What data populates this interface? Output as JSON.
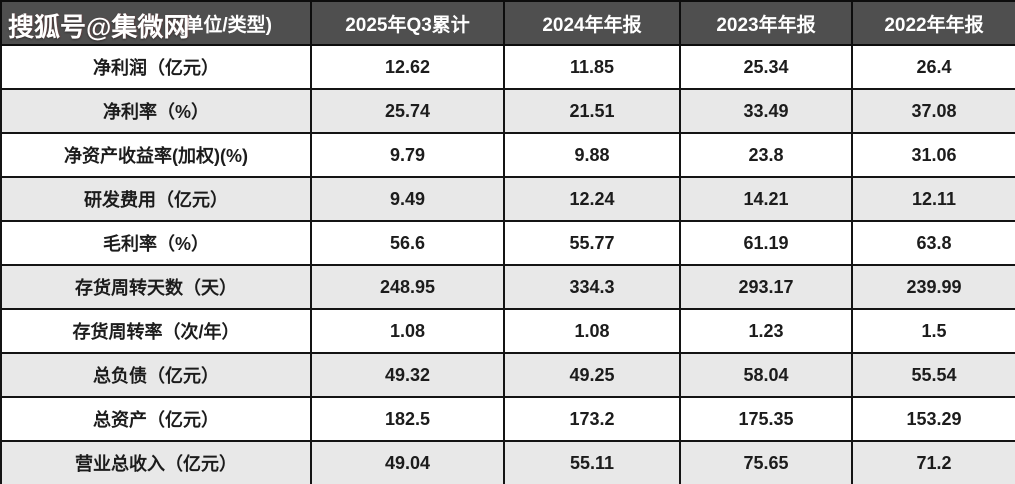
{
  "watermark": {
    "text": "搜狐号@集微网"
  },
  "colors": {
    "header_bg": "#4f4f4f",
    "header_text": "#ffffff",
    "row_bg": "#ffffff",
    "row_alt_bg": "#e8e8e8",
    "border": "#141414",
    "cell_text": "#1c1c1c"
  },
  "chart_data": {
    "type": "table",
    "metric_header_visible": "(单位/类型)",
    "columns": [
      "2025年Q3累计",
      "2024年年报",
      "2023年年报",
      "2022年年报"
    ],
    "rows": [
      {
        "metric": "净利润（亿元）",
        "values": [
          "12.62",
          "11.85",
          "25.34",
          "26.4"
        ]
      },
      {
        "metric": "净利率（%）",
        "values": [
          "25.74",
          "21.51",
          "33.49",
          "37.08"
        ]
      },
      {
        "metric": "净资产收益率(加权)(%)",
        "values": [
          "9.79",
          "9.88",
          "23.8",
          "31.06"
        ]
      },
      {
        "metric": "研发费用（亿元）",
        "values": [
          "9.49",
          "12.24",
          "14.21",
          "12.11"
        ]
      },
      {
        "metric": "毛利率（%）",
        "values": [
          "56.6",
          "55.77",
          "61.19",
          "63.8"
        ]
      },
      {
        "metric": "存货周转天数（天）",
        "values": [
          "248.95",
          "334.3",
          "293.17",
          "239.99"
        ]
      },
      {
        "metric": "存货周转率（次/年）",
        "values": [
          "1.08",
          "1.08",
          "1.23",
          "1.5"
        ]
      },
      {
        "metric": "总负债（亿元）",
        "values": [
          "49.32",
          "49.25",
          "58.04",
          "55.54"
        ]
      },
      {
        "metric": "总资产（亿元）",
        "values": [
          "182.5",
          "173.2",
          "175.35",
          "153.29"
        ]
      },
      {
        "metric": "营业总收入（亿元）",
        "values": [
          "49.04",
          "55.11",
          "75.65",
          "71.2"
        ]
      }
    ]
  }
}
